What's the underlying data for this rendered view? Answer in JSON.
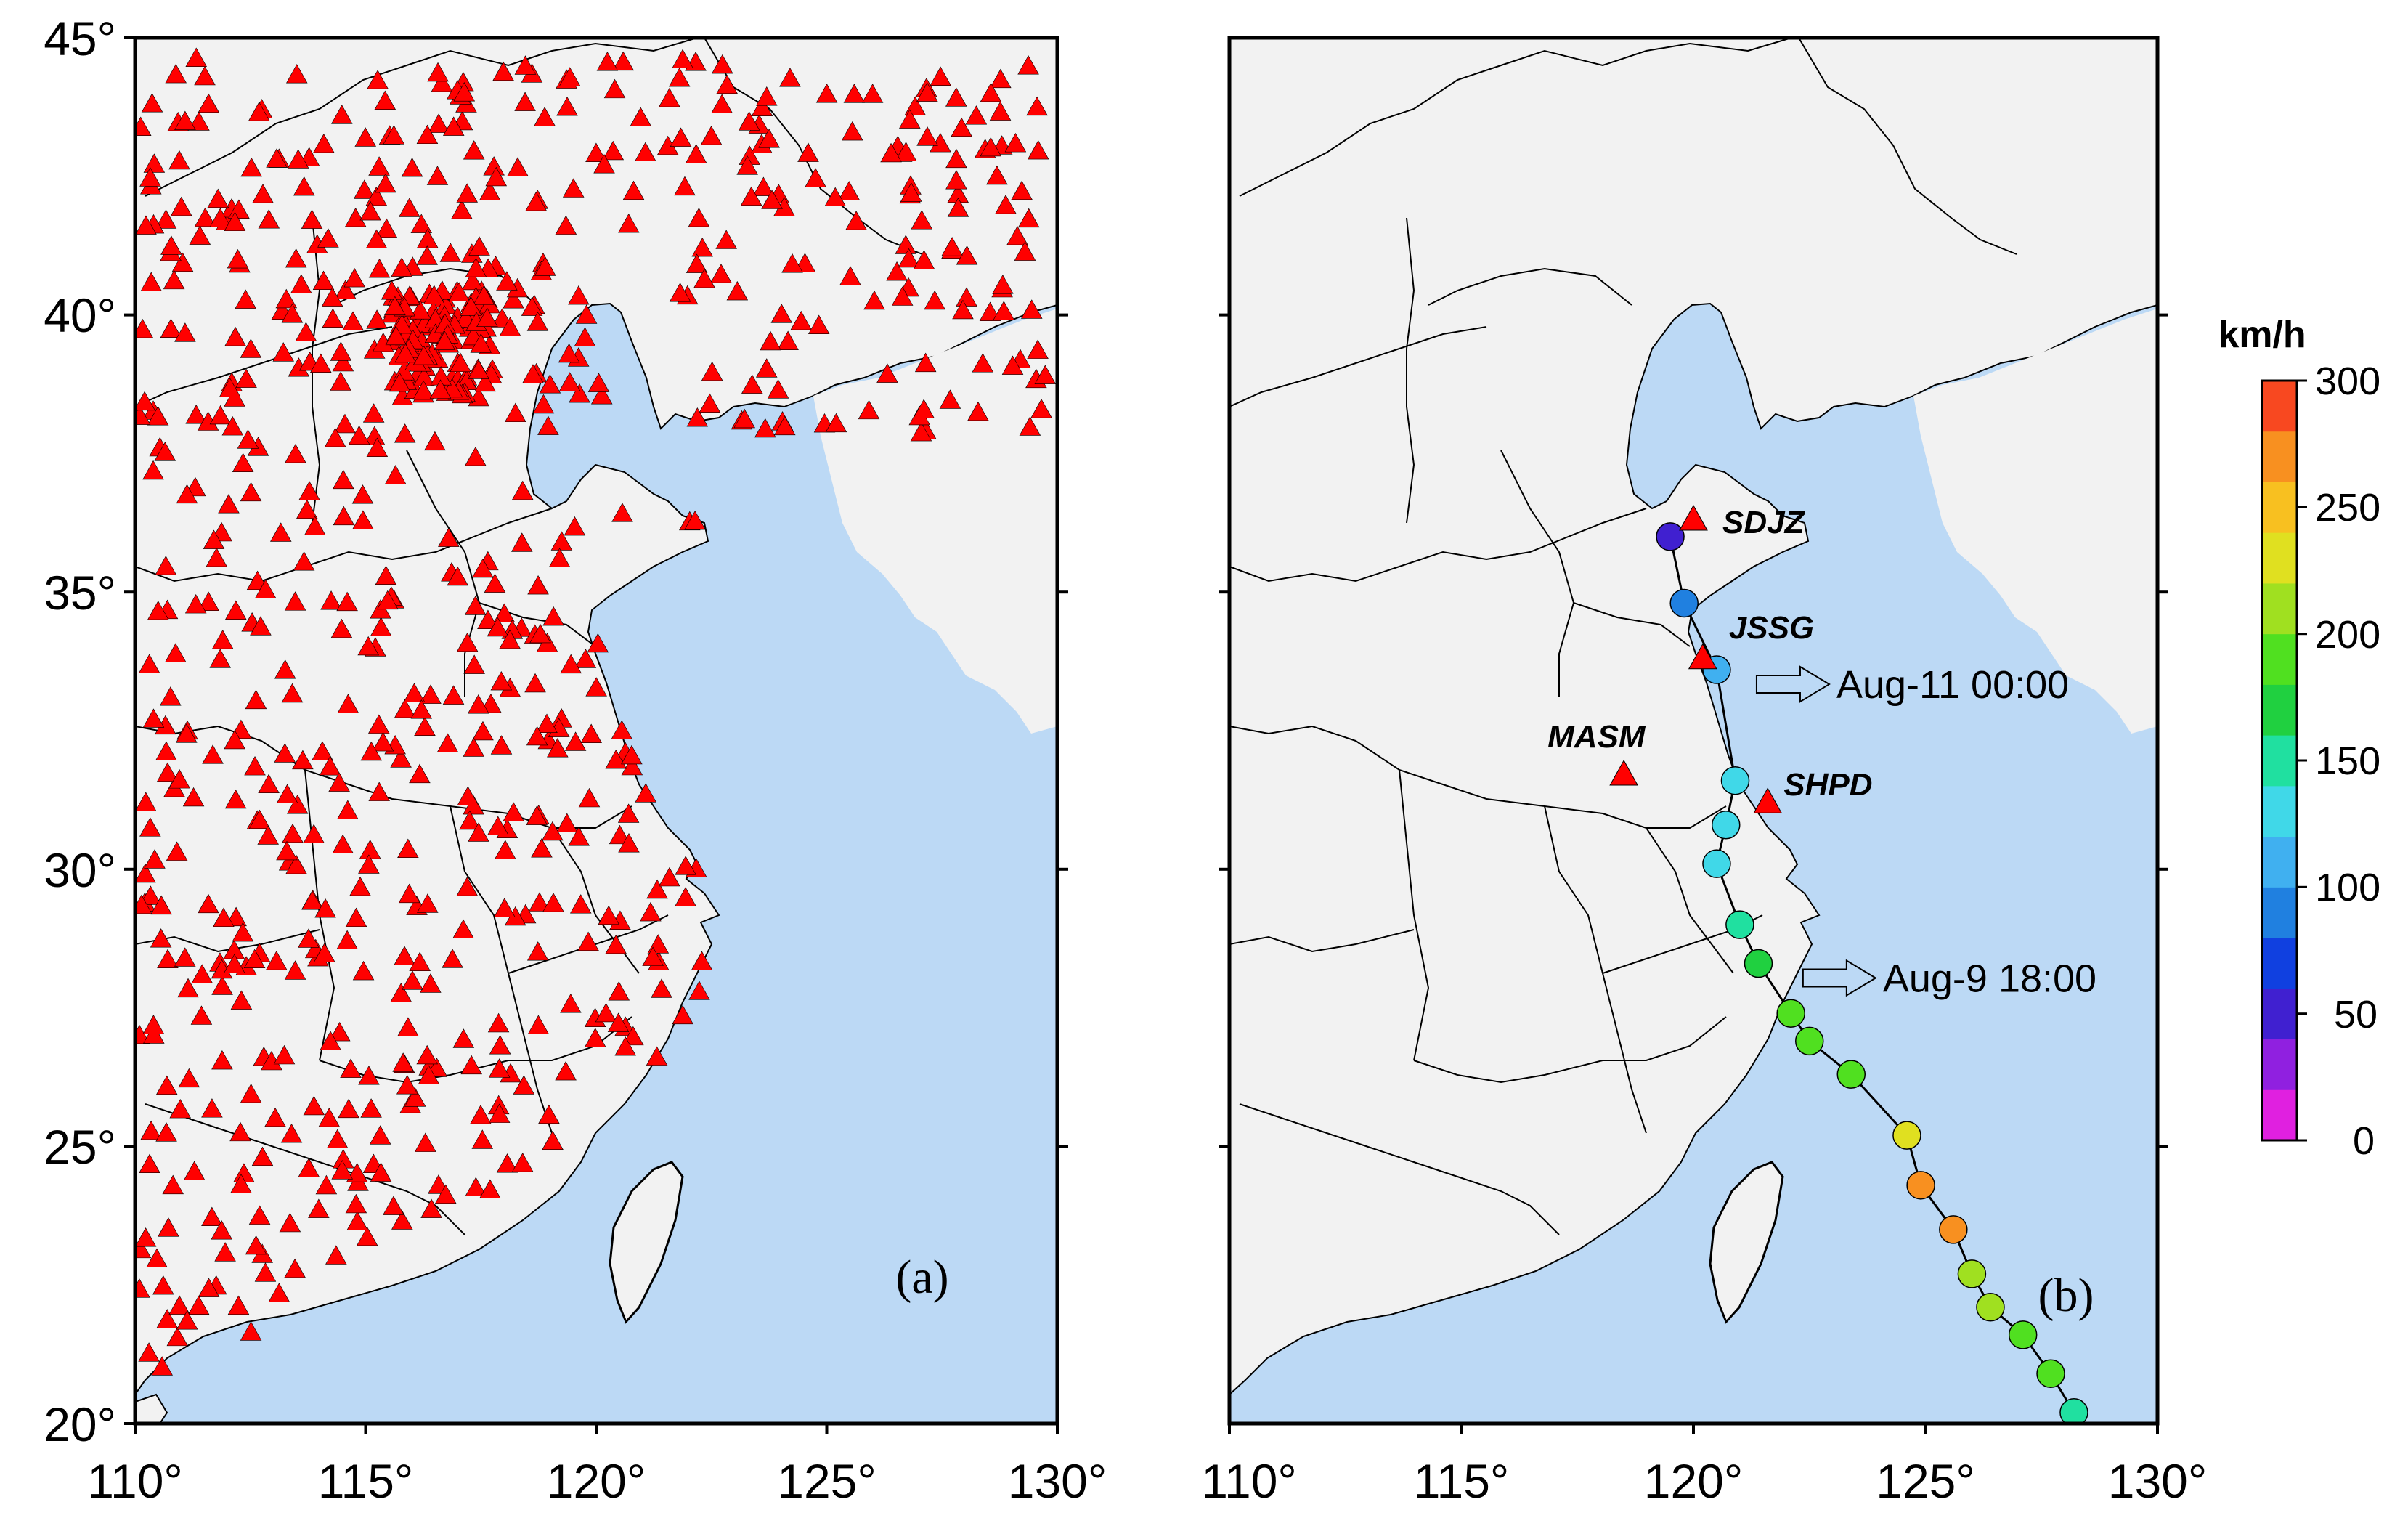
{
  "map_a": {
    "panel_label": "(a)",
    "x_ticks": [
      "110°",
      "115°",
      "120°",
      "125°",
      "130°"
    ],
    "y_ticks": [
      "45°",
      "40°",
      "35°",
      "30°",
      "25°",
      "20°"
    ],
    "lon_range": [
      110,
      130
    ],
    "lat_range": [
      20,
      45
    ],
    "station_marker": "red-triangle",
    "station_color": "#ff0000"
  },
  "map_b": {
    "panel_label": "(b)",
    "x_ticks": [
      "110°",
      "115°",
      "120°",
      "125°",
      "130°"
    ],
    "lon_range": [
      110,
      130
    ],
    "lat_range": [
      20,
      45
    ],
    "stations": [
      {
        "name": "SDJZ",
        "lon": 120.0,
        "lat": 36.3
      },
      {
        "name": "JSSG",
        "lon": 120.2,
        "lat": 33.8
      },
      {
        "name": "MASM",
        "lon": 118.5,
        "lat": 31.7
      },
      {
        "name": "SHPD",
        "lon": 121.6,
        "lat": 31.2
      }
    ],
    "annotations": [
      {
        "text": "Aug-11 00:00",
        "lon": 120.5,
        "lat": 33.6
      },
      {
        "text": "Aug-9 18:00",
        "lon": 121.5,
        "lat": 28.3
      }
    ],
    "track": [
      {
        "lon": 128.2,
        "lat": 20.2,
        "speed": 140
      },
      {
        "lon": 127.7,
        "lat": 20.9,
        "speed": 180
      },
      {
        "lon": 127.1,
        "lat": 21.6,
        "speed": 195
      },
      {
        "lon": 126.4,
        "lat": 22.1,
        "speed": 205
      },
      {
        "lon": 126.0,
        "lat": 22.7,
        "speed": 210
      },
      {
        "lon": 125.6,
        "lat": 23.5,
        "speed": 260
      },
      {
        "lon": 124.9,
        "lat": 24.3,
        "speed": 265
      },
      {
        "lon": 124.6,
        "lat": 25.2,
        "speed": 230
      },
      {
        "lon": 123.4,
        "lat": 26.3,
        "speed": 195
      },
      {
        "lon": 122.5,
        "lat": 26.9,
        "speed": 190
      },
      {
        "lon": 122.1,
        "lat": 27.4,
        "speed": 195
      },
      {
        "lon": 121.4,
        "lat": 28.3,
        "speed": 175
      },
      {
        "lon": 121.0,
        "lat": 29.0,
        "speed": 145
      },
      {
        "lon": 120.5,
        "lat": 30.1,
        "speed": 135
      },
      {
        "lon": 120.7,
        "lat": 30.8,
        "speed": 130
      },
      {
        "lon": 120.9,
        "lat": 31.6,
        "speed": 125
      },
      {
        "lon": 120.5,
        "lat": 33.6,
        "speed": 100
      },
      {
        "lon": 119.8,
        "lat": 34.8,
        "speed": 80
      },
      {
        "lon": 119.5,
        "lat": 36.0,
        "speed": 40
      }
    ]
  },
  "colorbar": {
    "unit": "km/h",
    "tick_labels": [
      "300",
      "250",
      "200",
      "150",
      "100",
      "50",
      "0"
    ],
    "range": [
      0,
      300
    ],
    "colors": [
      "#e020e0",
      "#9020e0",
      "#4020d0",
      "#1040e0",
      "#2080e0",
      "#40b0f0",
      "#40d8e8",
      "#20e0a0",
      "#20d040",
      "#50e020",
      "#a0e020",
      "#e0e020",
      "#f8c020",
      "#f89020",
      "#f84820"
    ]
  },
  "colors": {
    "land": "#f2f2f2",
    "sea": "#bcd9f5",
    "border": "#000000"
  }
}
